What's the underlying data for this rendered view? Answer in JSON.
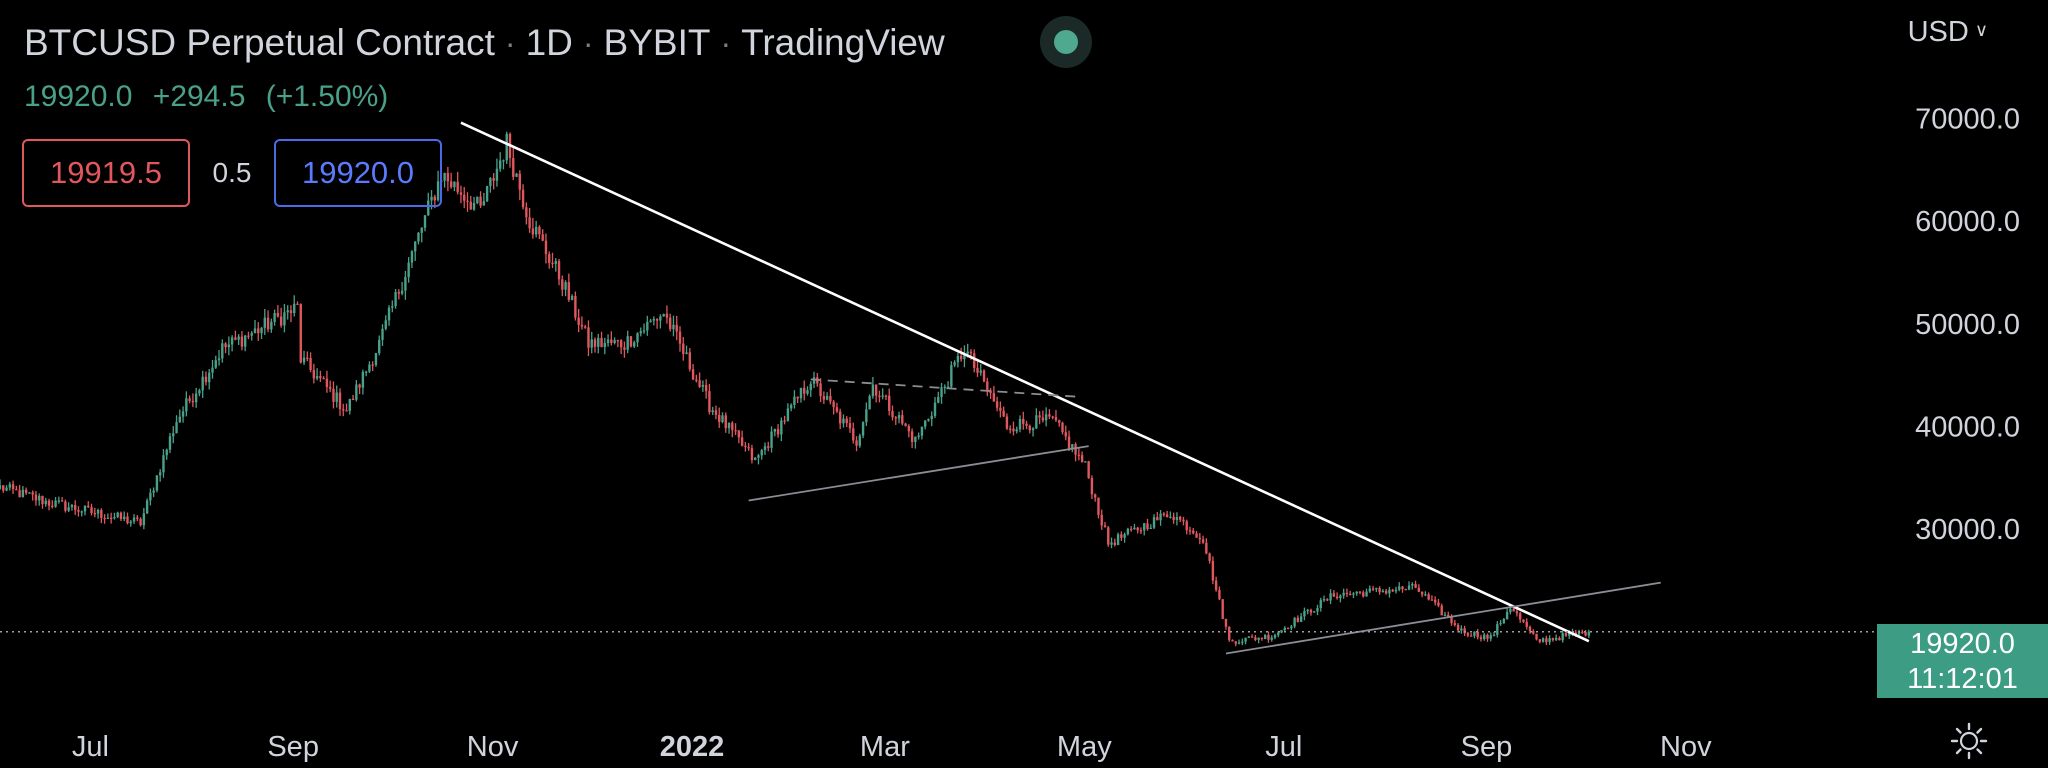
{
  "header": {
    "title": "BTCUSD Perpetual Contract",
    "interval": "1D",
    "exchange": "BYBIT",
    "provider": "TradingView",
    "separator": "·",
    "status_color": "#4ea98f"
  },
  "price": {
    "last": "19920.0",
    "change": "+294.5",
    "change_pct": "(+1.50%)"
  },
  "quote": {
    "bid": "19919.5",
    "spread": "0.5",
    "ask": "19920.0"
  },
  "currency": {
    "label": "USD",
    "icon": "chevron-down-icon"
  },
  "last_price_tag": {
    "price": "19920.0",
    "countdown": "11:12:01",
    "color": "#3d9c84"
  },
  "settings": {
    "icon": "gear-icon"
  },
  "colors": {
    "up": "#4aa18a",
    "down": "#e0575e",
    "trendline": "#ffffff",
    "pattern_lines": "#8a8d94",
    "background": "#000000"
  },
  "chart_data": {
    "type": "candlestick",
    "symbol": "BTCUSD",
    "interval": "1D",
    "x_axis": {
      "labels": [
        "Jul",
        "Sep",
        "Nov",
        "2022",
        "Mar",
        "May",
        "Jul",
        "Sep",
        "Nov"
      ],
      "dates": [
        "2021-07-01",
        "2021-09-01",
        "2021-11-01",
        "2022-01-01",
        "2022-03-01",
        "2022-05-01",
        "2022-07-01",
        "2022-09-01",
        "2022-11-01"
      ],
      "bold": [
        "2022"
      ],
      "range": [
        "2021-06-07",
        "2022-12-31"
      ]
    },
    "y_axis": {
      "ticks": [
        70000,
        60000,
        50000,
        40000,
        30000
      ],
      "tick_labels": [
        "70000.0",
        "60000.0",
        "50000.0",
        "40000.0",
        "30000.0"
      ],
      "range": [
        12000,
        72200
      ],
      "position": "right"
    },
    "last_price": 19920.0,
    "grid": false,
    "key_points": [
      {
        "date": "2021-06-07",
        "close": 34000
      },
      {
        "date": "2021-06-22",
        "close": 32500
      },
      {
        "date": "2021-07-20",
        "close": 30500
      },
      {
        "date": "2021-07-31",
        "close": 40500
      },
      {
        "date": "2021-08-14",
        "close": 47500
      },
      {
        "date": "2021-08-23",
        "close": 49000
      },
      {
        "date": "2021-09-06",
        "close": 51500
      },
      {
        "date": "2021-09-07",
        "close": 46500
      },
      {
        "date": "2021-09-21",
        "close": 41500
      },
      {
        "date": "2021-10-01",
        "close": 48000
      },
      {
        "date": "2021-10-20",
        "close": 64500
      },
      {
        "date": "2021-11-01",
        "close": 61000
      },
      {
        "date": "2021-11-09",
        "close": 67500
      },
      {
        "date": "2021-11-16",
        "close": 60000
      },
      {
        "date": "2021-11-26",
        "close": 54000
      },
      {
        "date": "2021-12-04",
        "close": 48000
      },
      {
        "date": "2021-12-15",
        "close": 48000
      },
      {
        "date": "2021-12-27",
        "close": 51000
      },
      {
        "date": "2022-01-10",
        "close": 42000
      },
      {
        "date": "2022-01-24",
        "close": 36500
      },
      {
        "date": "2022-02-10",
        "close": 44500
      },
      {
        "date": "2022-02-24",
        "close": 38500
      },
      {
        "date": "2022-03-01",
        "close": 44000
      },
      {
        "date": "2022-03-14",
        "close": 38500
      },
      {
        "date": "2022-03-29",
        "close": 47500
      },
      {
        "date": "2022-04-11",
        "close": 40000
      },
      {
        "date": "2022-04-25",
        "close": 40500
      },
      {
        "date": "2022-05-05",
        "close": 36000
      },
      {
        "date": "2022-05-12",
        "close": 28500
      },
      {
        "date": "2022-05-31",
        "close": 31500
      },
      {
        "date": "2022-06-10",
        "close": 29000
      },
      {
        "date": "2022-06-18",
        "close": 19000
      },
      {
        "date": "2022-07-01",
        "close": 19500
      },
      {
        "date": "2022-07-20",
        "close": 23500
      },
      {
        "date": "2022-08-14",
        "close": 24200
      },
      {
        "date": "2022-08-28",
        "close": 20000
      },
      {
        "date": "2022-09-06",
        "close": 19300
      },
      {
        "date": "2022-09-12",
        "close": 22400
      },
      {
        "date": "2022-09-20",
        "close": 19000
      },
      {
        "date": "2022-10-06",
        "close": 19920
      }
    ],
    "drawings": [
      {
        "name": "main-downtrend-line",
        "type": "trendline",
        "color": "#ffffff",
        "from": {
          "date": "2021-10-26",
          "price": 69500
        },
        "to": {
          "date": "2022-10-06",
          "price": 19000
        }
      },
      {
        "name": "triangle-upper-line",
        "type": "dashed",
        "color": "#8a8d94",
        "from": {
          "date": "2022-02-10",
          "price": 44500
        },
        "to": {
          "date": "2022-05-03",
          "price": 42800
        }
      },
      {
        "name": "triangle-lower-line",
        "type": "line",
        "color": "#8a8d94",
        "from": {
          "date": "2022-01-22",
          "price": 32700
        },
        "to": {
          "date": "2022-05-06",
          "price": 38000
        }
      },
      {
        "name": "bear-flag-lower-line",
        "type": "line",
        "color": "#8a8d94",
        "from": {
          "date": "2022-06-17",
          "price": 17800
        },
        "to": {
          "date": "2022-10-28",
          "price": 24700
        }
      }
    ]
  }
}
